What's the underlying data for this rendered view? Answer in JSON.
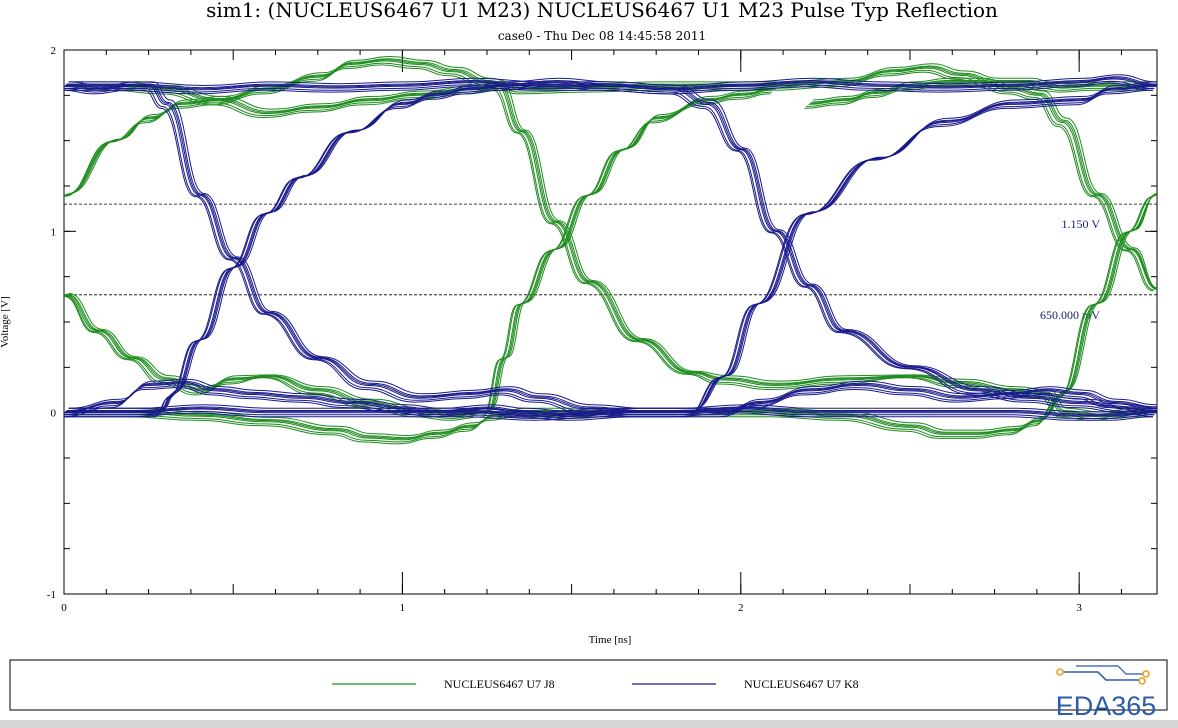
{
  "chart_data": {
    "type": "line",
    "title": "sim1: (NUCLEUS6467 U1 M23) NUCLEUS6467 U1 M23 Pulse Typ Reflection",
    "subtitle": "case0 - Thu Dec 08 14:45:58 2011",
    "xlabel": "Time [ns]",
    "ylabel": "Voltage [V]",
    "xlim": [
      0,
      3.23
    ],
    "ylim": [
      -1,
      2
    ],
    "x_ticks": [
      {
        "value": 0,
        "label": "0"
      },
      {
        "value": 1,
        "label": "1"
      },
      {
        "value": 2,
        "label": "2"
      },
      {
        "value": 3,
        "label": "3"
      }
    ],
    "y_ticks": [
      {
        "value": -1,
        "label": "-1"
      },
      {
        "value": 0,
        "label": "0"
      },
      {
        "value": 1,
        "label": "1"
      },
      {
        "value": 2,
        "label": "2"
      }
    ],
    "grid": false,
    "legend_position": "bottom",
    "reference_lines": [
      {
        "value": 1.15,
        "label": "1.150 V"
      },
      {
        "value": 0.65,
        "label": "650.000 mV"
      }
    ],
    "series": [
      {
        "name": "NUCLEUS6467 U7 J8",
        "color": "#1e8c1e",
        "traces": [
          {
            "x": [
              0,
              0.15,
              0.25,
              0.35,
              0.45,
              0.6,
              0.75,
              0.85,
              0.95,
              1.05,
              1.15,
              1.25,
              1.3,
              1.35,
              1.55,
              1.75,
              1.9,
              2.1,
              2.3,
              2.45,
              2.55,
              2.65,
              2.75,
              2.85,
              2.9,
              2.95,
              3.05,
              3.2
            ],
            "y": [
              1.2,
              1.5,
              1.62,
              1.7,
              1.72,
              1.78,
              1.85,
              1.92,
              1.94,
              1.92,
              1.88,
              1.82,
              1.8,
              1.78,
              1.79,
              1.8,
              1.8,
              1.8,
              1.82,
              1.88,
              1.9,
              1.86,
              1.82,
              1.82,
              1.8,
              1.79,
              1.8,
              1.8
            ]
          },
          {
            "x": [
              0,
              0.15,
              0.3,
              0.45,
              0.6,
              0.75,
              0.9,
              1.05,
              1.2,
              1.28,
              1.35,
              1.45,
              1.55,
              1.7,
              1.85,
              1.95,
              2.1,
              2.3,
              2.5,
              2.65,
              2.8,
              2.9,
              2.95,
              3.05,
              3.15,
              3.23
            ],
            "y": [
              1.8,
              1.8,
              1.78,
              1.72,
              1.65,
              1.68,
              1.72,
              1.75,
              1.78,
              1.8,
              1.55,
              1.05,
              0.72,
              0.4,
              0.22,
              0.18,
              0.15,
              0.18,
              0.2,
              0.16,
              0.12,
              0.1,
              0.0,
              -0.02,
              0.0,
              0.0
            ]
          },
          {
            "x": [
              0,
              0.1,
              0.2,
              0.3,
              0.4,
              0.5,
              0.6,
              0.75,
              0.9,
              1.05,
              1.15,
              1.25,
              1.3,
              1.35,
              1.45,
              1.55,
              1.65,
              1.75,
              1.9,
              2.0,
              2.1
            ],
            "y": [
              0.65,
              0.45,
              0.3,
              0.18,
              0.12,
              0.18,
              0.2,
              0.12,
              0.05,
              0.0,
              -0.02,
              0.0,
              0.3,
              0.6,
              0.9,
              1.2,
              1.45,
              1.62,
              1.72,
              1.75,
              1.78
            ]
          },
          {
            "x": [
              0,
              0.2,
              0.4,
              0.6,
              0.8,
              0.9,
              1.0,
              1.1,
              1.2,
              1.27,
              1.35,
              1.5,
              1.7,
              1.9,
              2.1,
              2.3,
              2.5,
              2.6,
              2.7,
              2.8,
              2.88,
              2.95,
              3.05,
              3.15,
              3.23
            ],
            "y": [
              0.0,
              0.0,
              -0.02,
              -0.05,
              -0.1,
              -0.14,
              -0.15,
              -0.12,
              -0.08,
              -0.02,
              0.0,
              0.0,
              0.0,
              0.0,
              0.0,
              -0.02,
              -0.08,
              -0.12,
              -0.12,
              -0.1,
              -0.05,
              0.1,
              0.6,
              1.0,
              1.2
            ]
          },
          {
            "x": [
              2.2,
              2.3,
              2.4,
              2.5,
              2.6,
              2.7,
              2.8,
              2.88,
              2.95,
              3.05,
              3.15,
              3.23
            ],
            "y": [
              1.7,
              1.72,
              1.76,
              1.8,
              1.82,
              1.82,
              1.78,
              1.75,
              1.6,
              1.2,
              0.9,
              0.68
            ]
          }
        ]
      },
      {
        "name": "NUCLEUS6467 U7 K8",
        "color": "#1a1a8c",
        "traces": [
          {
            "x": [
              0,
              0.1,
              0.2,
              0.25,
              0.3,
              0.4,
              0.5,
              0.6,
              0.75,
              0.9,
              1.05,
              1.2,
              1.3,
              1.4,
              1.55,
              1.7,
              1.85,
              1.95,
              2.05,
              2.2,
              2.35,
              2.5,
              2.65,
              2.8,
              2.9,
              3.0,
              3.1,
              3.23
            ],
            "y": [
              1.8,
              1.78,
              1.8,
              1.8,
              1.7,
              1.2,
              0.85,
              0.55,
              0.3,
              0.15,
              0.08,
              0.1,
              0.12,
              0.08,
              0.02,
              0.0,
              0.0,
              0.0,
              0.05,
              0.12,
              0.15,
              0.12,
              0.08,
              0.1,
              0.12,
              0.1,
              0.05,
              0.02
            ]
          },
          {
            "x": [
              0,
              0.15,
              0.25,
              0.35,
              0.45,
              0.55,
              0.7,
              0.85,
              1.0,
              1.1,
              1.25,
              1.35,
              1.5,
              1.7,
              1.85,
              1.95,
              2.05,
              2.2,
              2.4,
              2.6,
              2.8,
              3.0,
              3.1,
              3.23
            ],
            "y": [
              0.0,
              0.05,
              0.15,
              0.16,
              0.12,
              0.1,
              0.08,
              0.05,
              0.02,
              0.0,
              0.02,
              0.0,
              -0.02,
              0.0,
              0.0,
              0.2,
              0.6,
              1.1,
              1.4,
              1.6,
              1.7,
              1.72,
              1.78,
              1.8
            ]
          },
          {
            "x": [
              0,
              0.15,
              0.28,
              0.32,
              0.4,
              0.5,
              0.6,
              0.7,
              0.85,
              1.0,
              1.1,
              1.2,
              1.3,
              1.45,
              1.6,
              1.8,
              1.9,
              2.0,
              2.1,
              2.2,
              2.3,
              2.5,
              2.7,
              2.85,
              3.0,
              3.15,
              3.23
            ],
            "y": [
              0.0,
              0.0,
              0.0,
              0.1,
              0.4,
              0.8,
              1.1,
              1.3,
              1.55,
              1.7,
              1.75,
              1.78,
              1.8,
              1.82,
              1.8,
              1.78,
              1.7,
              1.45,
              1.0,
              0.7,
              0.45,
              0.25,
              0.12,
              0.08,
              0.05,
              0.02,
              0.0
            ]
          },
          {
            "x": [
              0,
              0.2,
              0.4,
              0.6,
              0.8,
              1.0,
              1.2,
              1.4,
              1.6,
              1.8,
              2.0,
              2.2,
              2.4,
              2.6,
              2.8,
              3.0,
              3.1,
              3.23
            ],
            "y": [
              1.8,
              1.8,
              1.78,
              1.8,
              1.79,
              1.8,
              1.82,
              1.8,
              1.8,
              1.78,
              1.8,
              1.82,
              1.8,
              1.79,
              1.8,
              1.82,
              1.84,
              1.8
            ]
          },
          {
            "x": [
              0,
              0.2,
              0.4,
              0.6,
              0.8,
              1.0,
              1.2,
              1.4,
              1.6,
              1.8,
              2.0,
              2.2,
              2.4,
              2.6,
              2.8,
              3.0,
              3.1,
              3.23
            ],
            "y": [
              0.0,
              0.0,
              0.02,
              0.0,
              0.0,
              0.0,
              0.0,
              -0.02,
              0.0,
              0.0,
              0.02,
              0.0,
              0.0,
              0.0,
              0.0,
              -0.02,
              -0.02,
              0.0
            ]
          }
        ]
      }
    ]
  },
  "legend": {
    "items": [
      {
        "label": "NUCLEUS6467 U7 J8",
        "color": "#1e8c1e"
      },
      {
        "label": "NUCLEUS6467 U7 K8",
        "color": "#1a1a8c"
      }
    ]
  },
  "logo": {
    "text": "EDA365",
    "color": "#2a5caa",
    "accent": "#e8a020"
  }
}
